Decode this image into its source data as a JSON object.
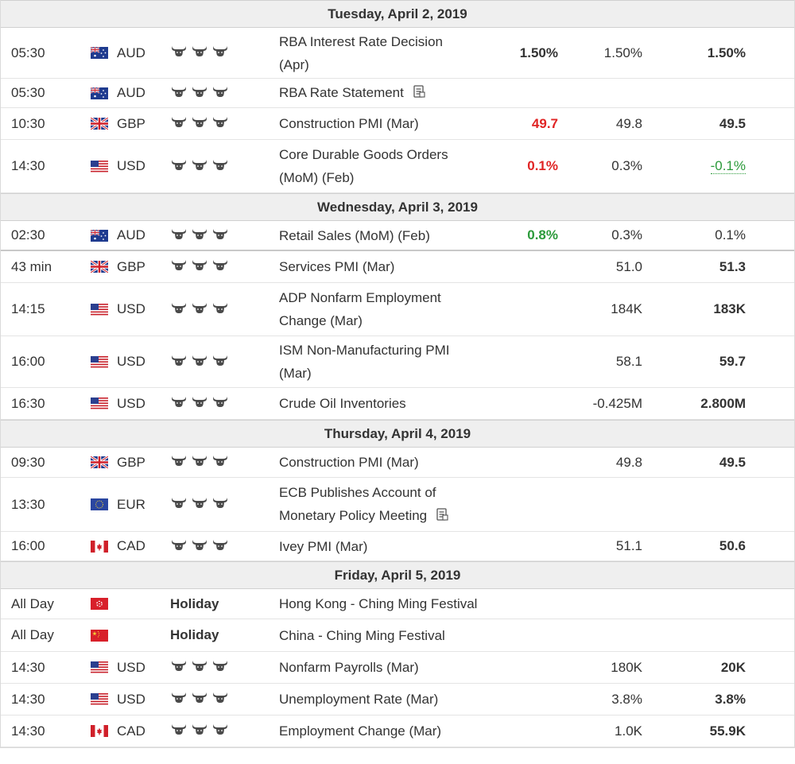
{
  "days": [
    {
      "date": "Tuesday, April 2, 2019",
      "events": [
        {
          "time": "05:30",
          "flag": "australia-flag",
          "currency": "AUD",
          "impact": 3,
          "name": [
            "RBA Interest Rate Decision",
            "(Apr)"
          ],
          "actual": "1.50%",
          "actual_color": "normal",
          "forecast": "1.50%",
          "previous": "1.50%",
          "h": 64
        },
        {
          "time": "05:30",
          "flag": "australia-flag",
          "currency": "AUD",
          "impact": 3,
          "name": [
            "RBA Rate Statement"
          ],
          "doc": true,
          "actual": "",
          "forecast": "",
          "previous": "",
          "h": 37
        },
        {
          "time": "10:30",
          "flag": "uk-flag",
          "currency": "GBP",
          "impact": 3,
          "name": [
            "Construction PMI (Mar)"
          ],
          "actual": "49.7",
          "actual_color": "red",
          "forecast": "49.8",
          "previous": "49.5",
          "h": 40
        },
        {
          "time": "14:30",
          "flag": "us-flag",
          "currency": "USD",
          "impact": 3,
          "name": [
            "Core Durable Goods Orders",
            "(MoM) (Feb)"
          ],
          "actual": "0.1%",
          "actual_color": "red",
          "forecast": "0.3%",
          "previous": "-0.1%",
          "previous_color": "green",
          "h": 67
        }
      ]
    },
    {
      "date": "Wednesday, April 3, 2019",
      "events": [
        {
          "time": "02:30",
          "flag": "australia-flag",
          "currency": "AUD",
          "impact": 3,
          "name": [
            "Retail Sales (MoM) (Feb)"
          ],
          "actual": "0.8%",
          "actual_color": "green",
          "forecast": "0.3%",
          "previous": "0.1%",
          "previous_bold": false,
          "h": 38,
          "sep": true
        },
        {
          "time": "43 min",
          "flag": "uk-flag",
          "currency": "GBP",
          "impact": 3,
          "name": [
            "Services PMI (Mar)"
          ],
          "actual": "",
          "forecast": "51.0",
          "previous": "51.3",
          "h": 40
        },
        {
          "time": "14:15",
          "flag": "us-flag",
          "currency": "USD",
          "impact": 3,
          "name": [
            "ADP Nonfarm Employment",
            "Change (Mar)"
          ],
          "actual": "",
          "forecast": "184K",
          "previous": "183K",
          "h": 67
        },
        {
          "time": "16:00",
          "flag": "us-flag",
          "currency": "USD",
          "impact": 3,
          "name": [
            "ISM Non-Manufacturing PMI",
            "(Mar)"
          ],
          "actual": "",
          "forecast": "58.1",
          "previous": "59.7",
          "h": 65
        },
        {
          "time": "16:30",
          "flag": "us-flag",
          "currency": "USD",
          "impact": 3,
          "name": [
            "Crude Oil Inventories"
          ],
          "actual": "",
          "forecast": "-0.425M",
          "previous": "2.800M",
          "h": 40
        }
      ]
    },
    {
      "date": "Thursday, April 4, 2019",
      "events": [
        {
          "time": "09:30",
          "flag": "uk-flag",
          "currency": "GBP",
          "impact": 3,
          "name": [
            "Construction PMI (Mar)"
          ],
          "actual": "",
          "forecast": "49.8",
          "previous": "49.5",
          "h": 38
        },
        {
          "time": "13:30",
          "flag": "eu-flag",
          "currency": "EUR",
          "impact": 3,
          "name": [
            "ECB Publishes Account of",
            "Monetary Policy Meeting"
          ],
          "doc": true,
          "actual": "",
          "forecast": "",
          "previous": "",
          "h": 68
        },
        {
          "time": "16:00",
          "flag": "canada-flag",
          "currency": "CAD",
          "impact": 3,
          "name": [
            "Ivey PMI (Mar)"
          ],
          "actual": "",
          "forecast": "51.1",
          "previous": "50.6",
          "h": 37
        }
      ]
    },
    {
      "date": "Friday, April 5, 2019",
      "events": [
        {
          "time": "All Day",
          "flag": "hongkong-flag",
          "currency": "",
          "holiday": "Holiday",
          "name": [
            "Hong Kong - Ching Ming Festival"
          ],
          "actual": "",
          "forecast": "",
          "previous": "",
          "h": 38
        },
        {
          "time": "All Day",
          "flag": "china-flag",
          "currency": "",
          "holiday": "Holiday",
          "name": [
            "China - Ching Ming Festival"
          ],
          "actual": "",
          "forecast": "",
          "previous": "",
          "h": 41
        },
        {
          "time": "14:30",
          "flag": "us-flag",
          "currency": "USD",
          "impact": 3,
          "name": [
            "Nonfarm Payrolls (Mar)"
          ],
          "actual": "",
          "forecast": "180K",
          "previous": "20K",
          "h": 40
        },
        {
          "time": "14:30",
          "flag": "us-flag",
          "currency": "USD",
          "impact": 3,
          "name": [
            "Unemployment Rate (Mar)"
          ],
          "actual": "",
          "forecast": "3.8%",
          "previous": "3.8%",
          "h": 40
        },
        {
          "time": "14:30",
          "flag": "canada-flag",
          "currency": "CAD",
          "impact": 3,
          "name": [
            "Employment Change (Mar)"
          ],
          "actual": "",
          "forecast": "1.0K",
          "previous": "55.9K",
          "h": 40
        }
      ]
    }
  ]
}
